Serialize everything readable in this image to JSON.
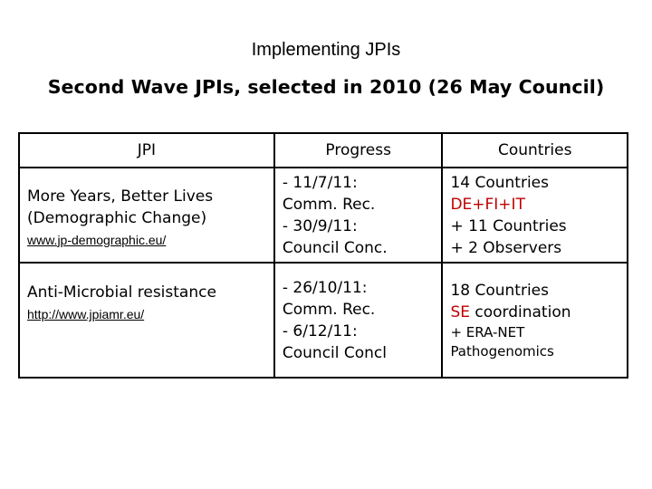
{
  "title": "Implementing JPIs",
  "subtitle": "Second Wave JPIs, selected in 2010 (26 May Council)",
  "table": {
    "headers": [
      "JPI",
      "Progress",
      "Countries"
    ],
    "rows": [
      {
        "jpi_name_line1": "More Years, Better Lives",
        "jpi_name_line2": "(Demographic Change)",
        "jpi_url": "www.jp-demographic.eu/",
        "progress": [
          "- 11/7/11:",
          "Comm. Rec.",
          "- 30/9/11:",
          "Council Conc."
        ],
        "countries_line1": "14 Countries",
        "countries_line2": "DE+FI+IT",
        "countries_line3": "+ 11 Countries",
        "countries_line4": "+ 2 Observers"
      },
      {
        "jpi_name_line1": "Anti-Microbial resistance",
        "jpi_url": "http://www.jpiamr.eu/",
        "progress": [
          "- 26/10/11:",
          "Comm. Rec.",
          "- 6/12/11:",
          "Council Concl"
        ],
        "countries_line1": "18 Countries",
        "countries_line2_red": "SE",
        "countries_line2_rest": " coordination",
        "countries_line3": "+ ERA-NET",
        "countries_line4": "Pathogenomics"
      }
    ]
  },
  "colors": {
    "highlight": "#c00000"
  }
}
